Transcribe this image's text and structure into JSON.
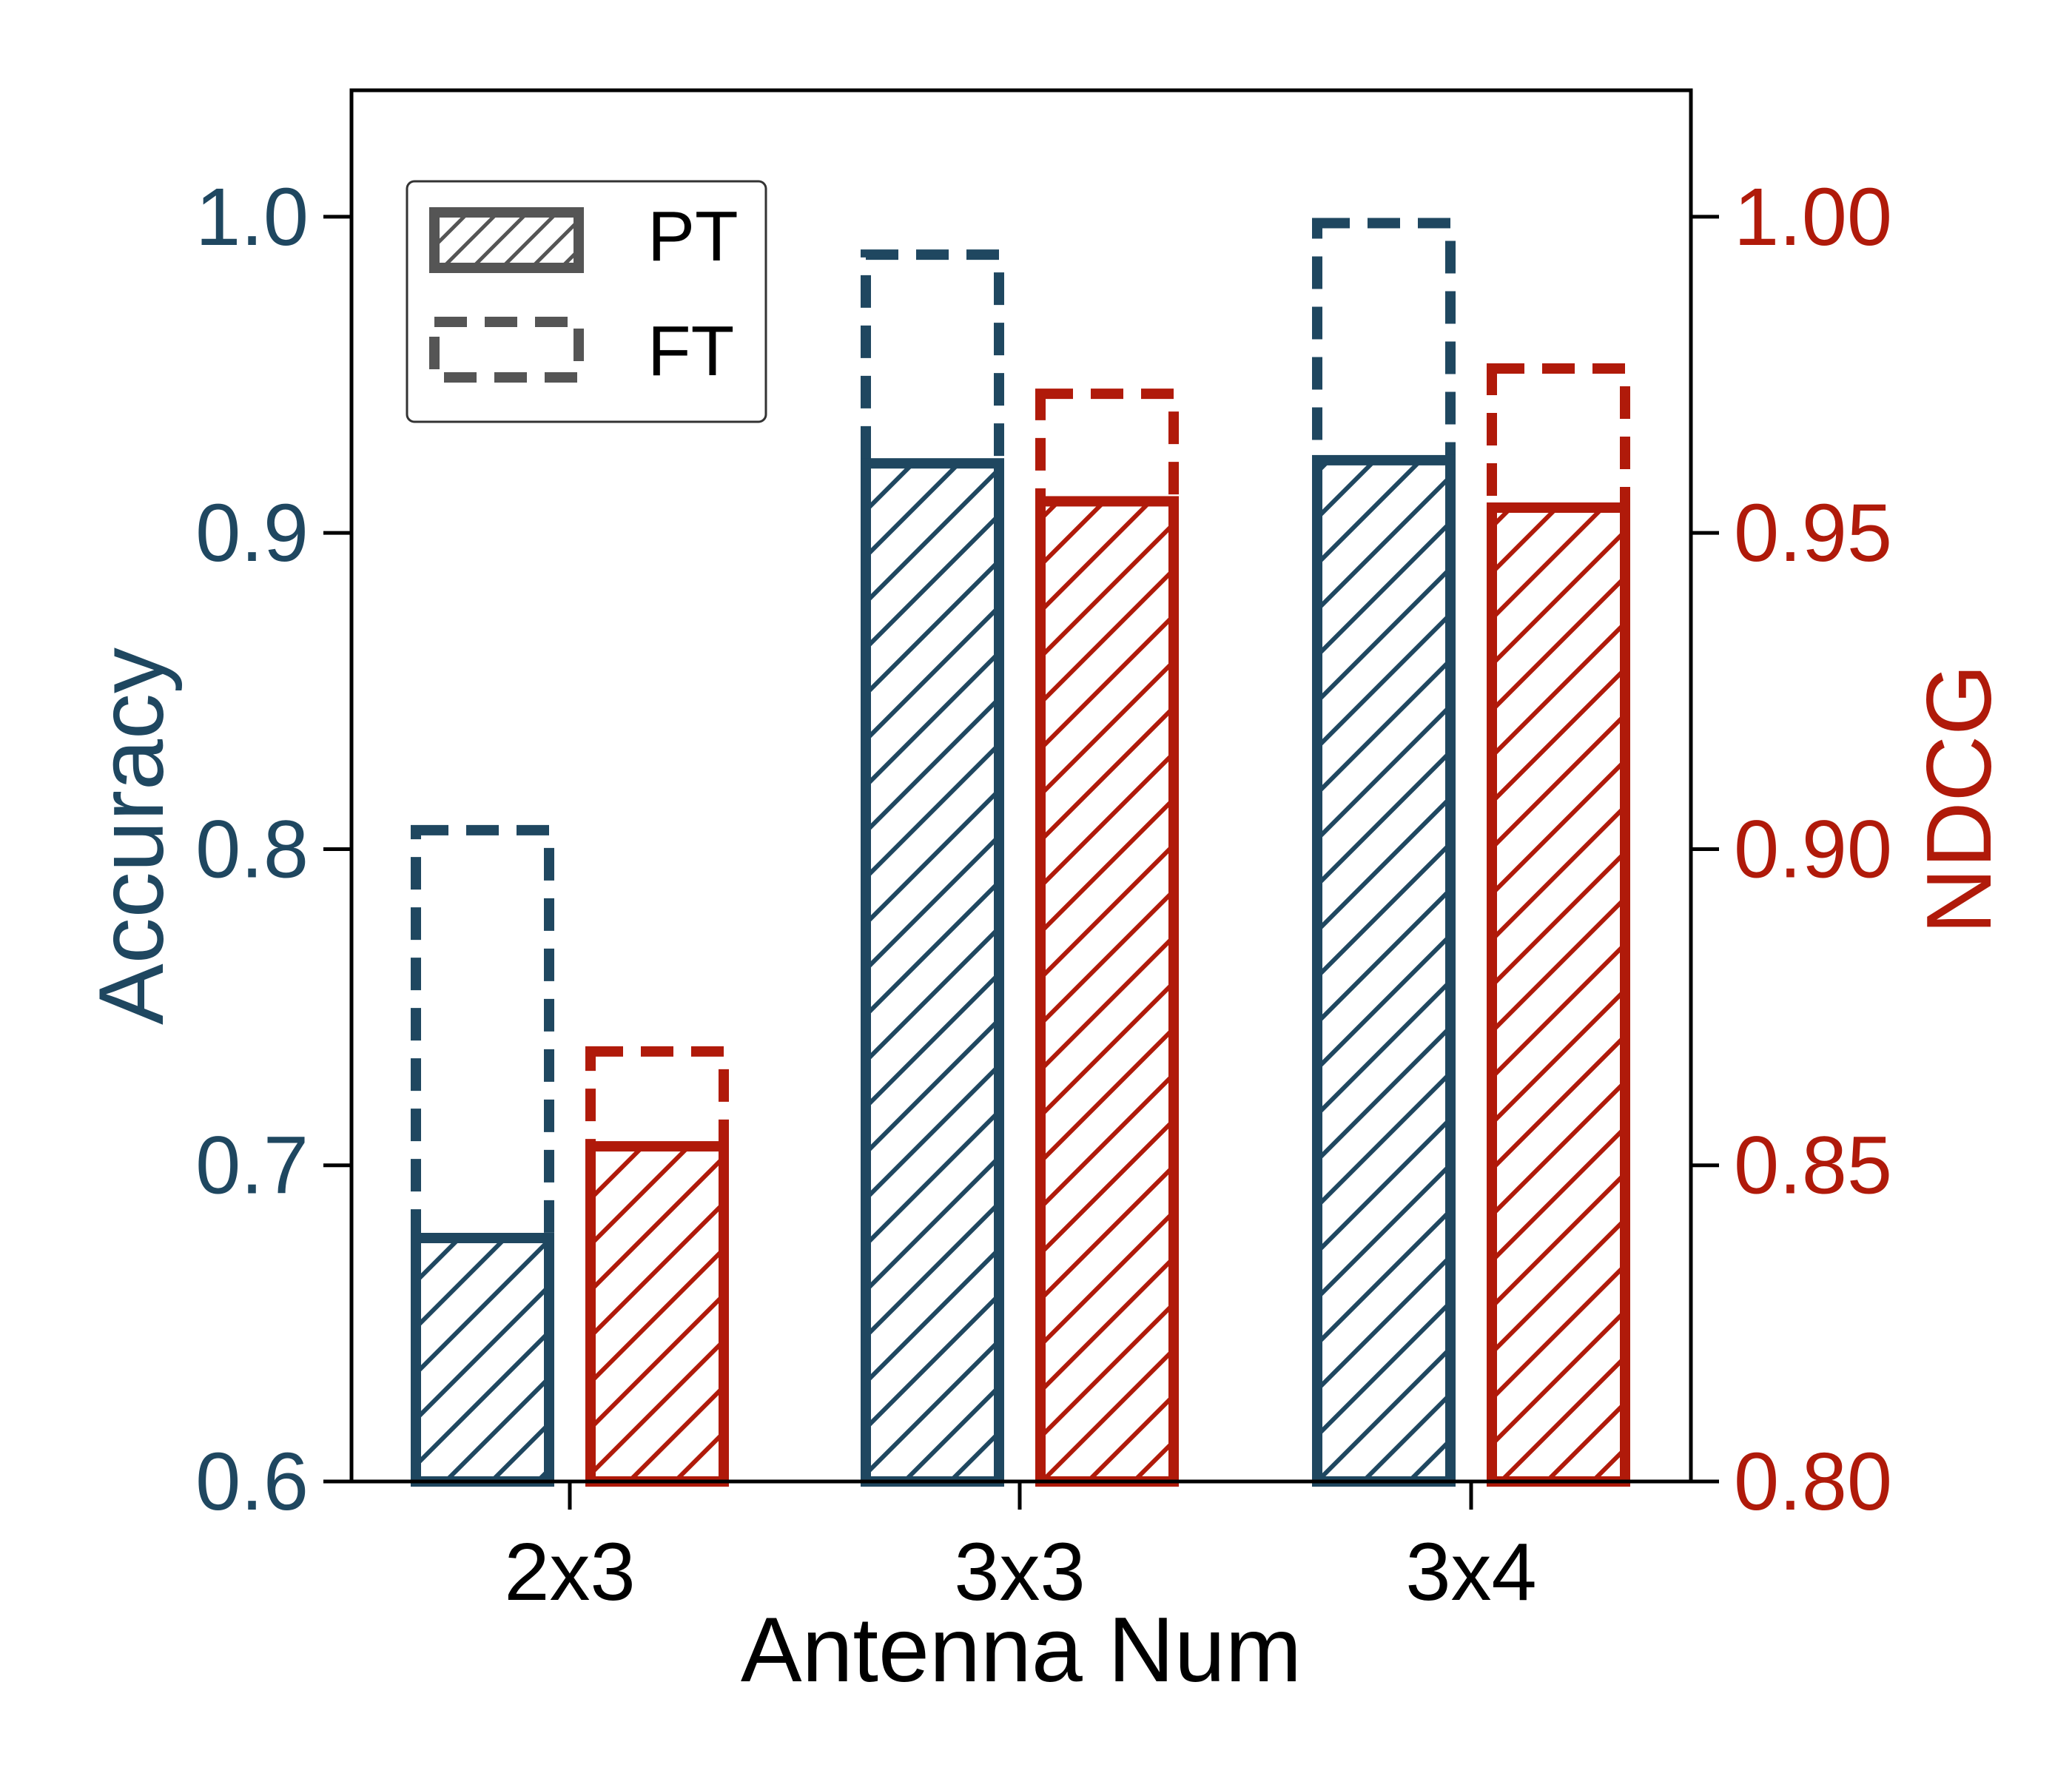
{
  "colors": {
    "accuracy": "#1f4760",
    "ndcg": "#b01a0a",
    "axis": "#000000",
    "legend": "#555555"
  },
  "chart_data": {
    "type": "bar",
    "categories": [
      "2x3",
      "3x3",
      "3x4"
    ],
    "xlabel": "Antenna Num",
    "ylabel_left": "Accuracy",
    "ylabel_right": "NDCG",
    "ylim_left": [
      0.6,
      1.04
    ],
    "ylim_right": [
      0.8,
      1.02
    ],
    "yticks_left": [
      "0.6",
      "0.7",
      "0.8",
      "0.9",
      "1.0"
    ],
    "yticks_right": [
      "0.80",
      "0.85",
      "0.90",
      "0.95",
      "1.00"
    ],
    "legend_position": "top-left",
    "legend": [
      {
        "label": "PT",
        "style": "hatched"
      },
      {
        "label": "FT",
        "style": "dashed"
      }
    ],
    "series": [
      {
        "metric": "Accuracy",
        "axis": "left",
        "PT": [
          0.677,
          0.922,
          0.923
        ],
        "FT": [
          0.806,
          0.988,
          0.998
        ]
      },
      {
        "metric": "NDCG",
        "axis": "right",
        "PT": [
          0.853,
          0.955,
          0.954
        ],
        "FT": [
          0.868,
          0.972,
          0.976
        ]
      }
    ]
  }
}
